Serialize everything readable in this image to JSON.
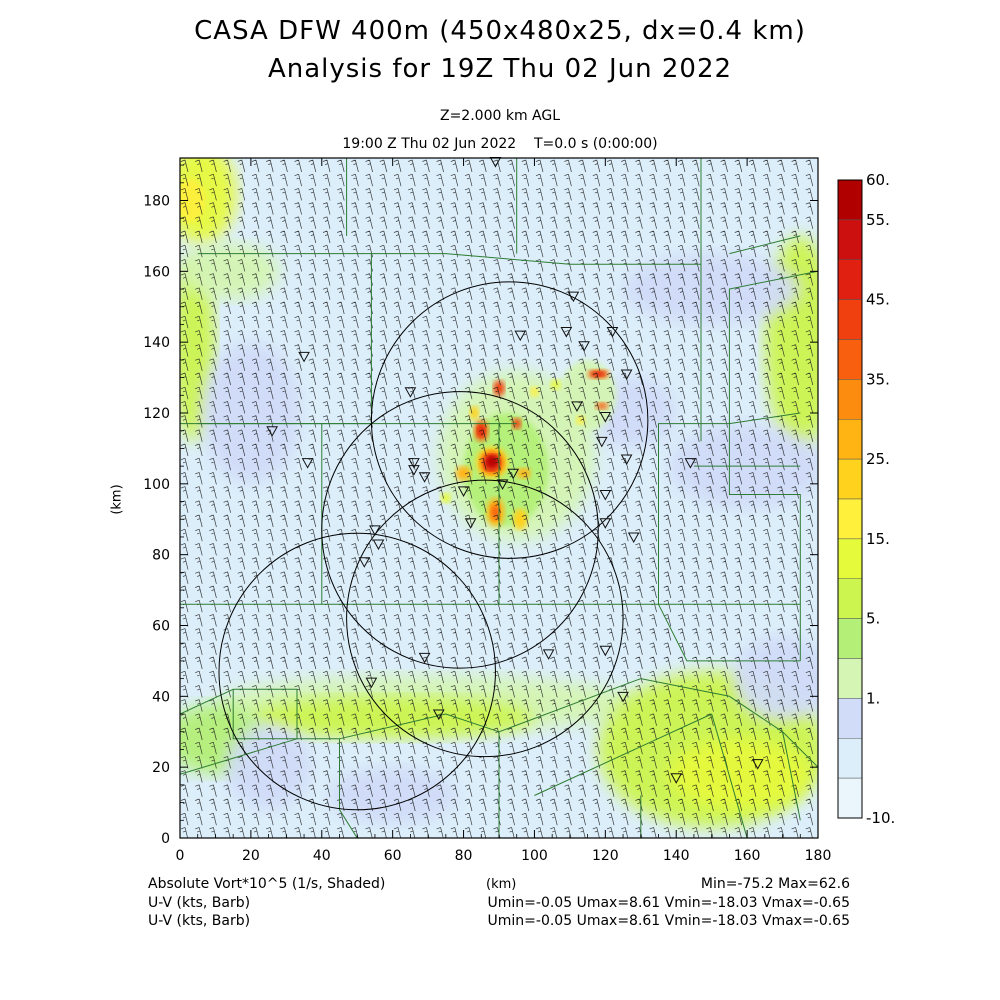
{
  "title_line1": "CASA DFW 400m (450x480x25, dx=0.4 km)",
  "title_line2": "Analysis for 19Z Thu 02 Jun 2022",
  "level_label": "Z=2.000 km AGL",
  "time_label": "19:00 Z Thu 02 Jun 2022    T=0.0 s (0:00:00)",
  "footer": {
    "field_label": "Absolute Vort*10^5 (1/s, Shaded)",
    "x_unit": "(km)",
    "minmax": "Min=-75.2 Max=62.6",
    "barb_label_1": "U-V (kts, Barb)",
    "barb_stats_1": "Umin=-0.05 Umax=8.61 Vmin=-18.03 Vmax=-0.65",
    "barb_label_2": "U-V (kts, Barb)",
    "barb_stats_2": "Umin=-0.05 Umax=8.61 Vmin=-18.03 Vmax=-0.65"
  },
  "chart_data": {
    "type": "heatmap",
    "xlabel": "(km)",
    "ylabel": "(km)",
    "xlim": [
      0,
      180
    ],
    "ylim": [
      0,
      192
    ],
    "x_ticks": [
      0,
      20,
      40,
      60,
      80,
      100,
      120,
      140,
      160,
      180
    ],
    "y_ticks": [
      0,
      20,
      40,
      60,
      80,
      100,
      120,
      140,
      160,
      180
    ],
    "colorbar": {
      "labels": [
        "60.",
        "55.",
        "45.",
        "35.",
        "25.",
        "15.",
        "5.",
        "1.",
        "-10."
      ],
      "colors": [
        "#b00000",
        "#cc1010",
        "#e02010",
        "#f04010",
        "#f86010",
        "#fc8c10",
        "#ffb414",
        "#ffd21e",
        "#fff03c",
        "#e6fa3c",
        "#ccf550",
        "#b4f078",
        "#d4f5b4",
        "#d0dcf8",
        "#dceefa",
        "#eaf6fc"
      ]
    },
    "base_fields": [
      {
        "x": [
          0,
          180
        ],
        "y": [
          0,
          192
        ],
        "value": "light-blue"
      }
    ],
    "field_features": [
      {
        "x": [
          0,
          18
        ],
        "y": [
          170,
          192
        ],
        "value": "yellow-green"
      },
      {
        "x": [
          0,
          12
        ],
        "y": [
          110,
          165
        ],
        "value": "green"
      },
      {
        "x": [
          20,
          120
        ],
        "y": [
          30,
          45
        ],
        "value": "green"
      },
      {
        "x": [
          120,
          180
        ],
        "y": [
          0,
          45
        ],
        "value": "green"
      },
      {
        "x": [
          150,
          180
        ],
        "y": [
          110,
          170
        ],
        "value": "green"
      },
      {
        "x": [
          84,
          92
        ],
        "y": [
          100,
          110
        ],
        "value": "dark-red"
      }
    ],
    "radar_sites": [
      {
        "x": 35,
        "y": 136
      },
      {
        "x": 26,
        "y": 115
      },
      {
        "x": 36,
        "y": 106
      },
      {
        "x": 65,
        "y": 126
      },
      {
        "x": 66,
        "y": 104
      },
      {
        "x": 66,
        "y": 106
      },
      {
        "x": 69,
        "y": 102
      },
      {
        "x": 80,
        "y": 98
      },
      {
        "x": 82,
        "y": 89
      },
      {
        "x": 89,
        "y": 191
      },
      {
        "x": 96,
        "y": 142
      },
      {
        "x": 109,
        "y": 143
      },
      {
        "x": 111,
        "y": 153
      },
      {
        "x": 114,
        "y": 139
      },
      {
        "x": 112,
        "y": 122
      },
      {
        "x": 120,
        "y": 119
      },
      {
        "x": 122,
        "y": 143
      },
      {
        "x": 126,
        "y": 131
      },
      {
        "x": 119,
        "y": 112
      },
      {
        "x": 126,
        "y": 107
      },
      {
        "x": 144,
        "y": 106
      },
      {
        "x": 120,
        "y": 97
      },
      {
        "x": 120,
        "y": 89
      },
      {
        "x": 128,
        "y": 85
      },
      {
        "x": 94,
        "y": 103
      },
      {
        "x": 91,
        "y": 100
      },
      {
        "x": 55,
        "y": 87
      },
      {
        "x": 56,
        "y": 83
      },
      {
        "x": 52,
        "y": 78
      },
      {
        "x": 69,
        "y": 51
      },
      {
        "x": 104,
        "y": 52
      },
      {
        "x": 120,
        "y": 53
      },
      {
        "x": 54,
        "y": 44
      },
      {
        "x": 73,
        "y": 35
      },
      {
        "x": 125,
        "y": 40
      },
      {
        "x": 140,
        "y": 17
      },
      {
        "x": 163,
        "y": 21
      }
    ],
    "range_rings": [
      {
        "x": 93,
        "y": 118,
        "r": 39
      },
      {
        "x": 79,
        "y": 87,
        "r": 39
      },
      {
        "x": 50,
        "y": 47,
        "r": 39
      },
      {
        "x": 86,
        "y": 62,
        "r": 39
      }
    ]
  }
}
